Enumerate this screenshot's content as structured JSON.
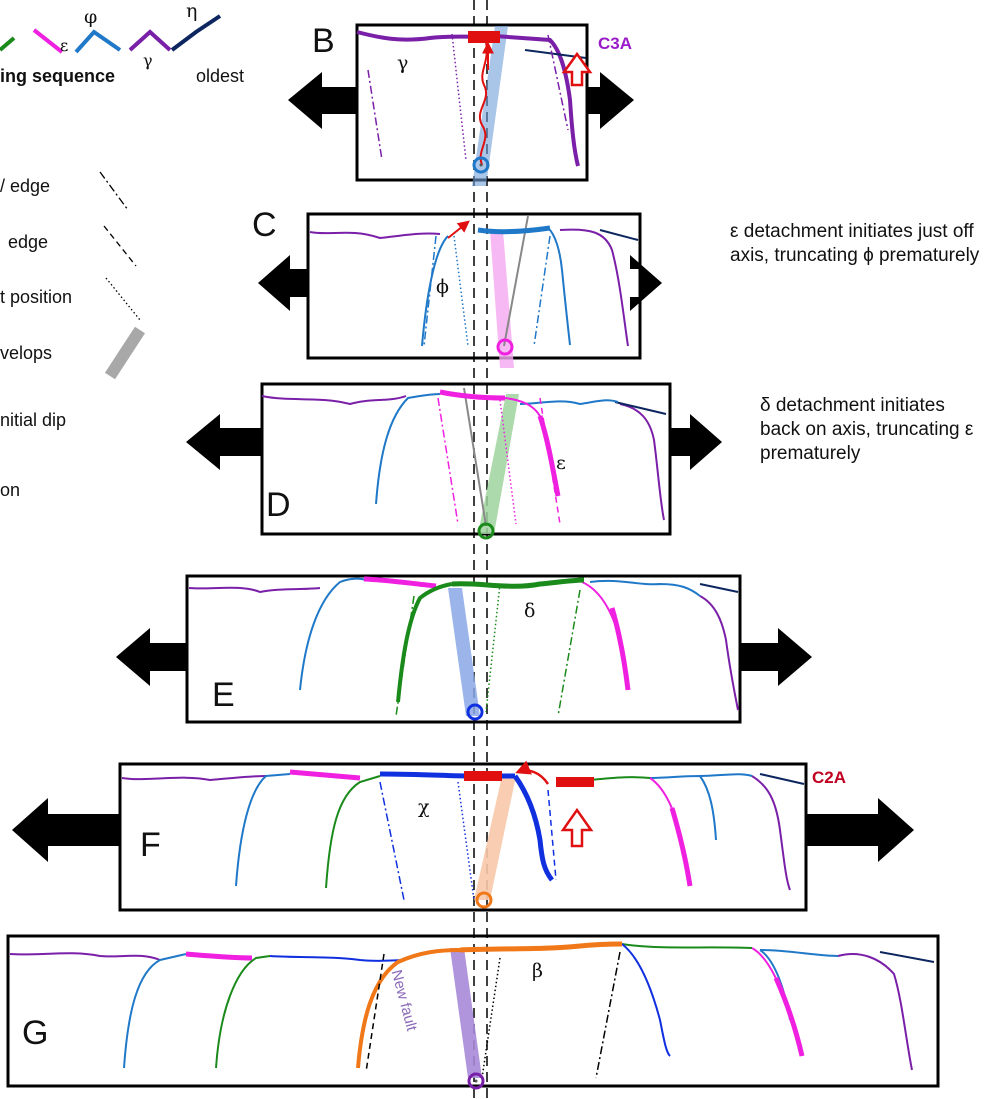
{
  "colors": {
    "eta": "#0d2660",
    "gamma": "#7a1fa8",
    "phi": "#1f78c8",
    "epsilon": "#f020e0",
    "delta": "#1a8a1a",
    "chi": "#1030e0",
    "beta": "#f07818",
    "red": "#e01010",
    "darkred": "#c00020"
  },
  "legend": {
    "greek_phi": "φ",
    "greek_eta": "η",
    "greek_eps": "ε",
    "greek_gamma": "γ",
    "sequence_label": "ing sequence",
    "oldest_label": "oldest",
    "items": [
      "/ edge",
      "edge",
      "t position",
      "velops",
      "nitial dip",
      "on"
    ]
  },
  "panels": {
    "B": {
      "letter": "B",
      "greek": "γ",
      "tag": "C3A"
    },
    "C": {
      "letter": "C",
      "greek": "ϕ"
    },
    "D": {
      "letter": "D",
      "greek": "ε"
    },
    "E": {
      "letter": "E",
      "greek": "δ"
    },
    "F": {
      "letter": "F",
      "greek": "χ",
      "tag": "C2A"
    },
    "G": {
      "letter": "G",
      "greek": "β",
      "fault_label": "New fault"
    }
  },
  "notes": {
    "C": "ε detachment initiates just off axis, truncating ϕ prematurely",
    "D": "δ detachment initiates back on axis, truncating ε prematurely"
  }
}
